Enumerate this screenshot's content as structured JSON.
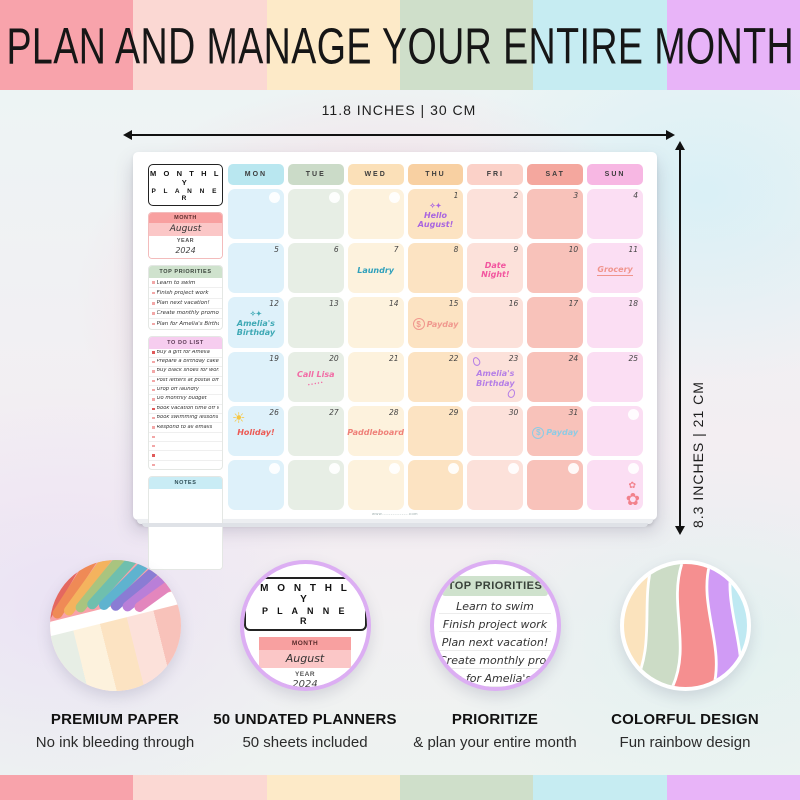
{
  "banner": {
    "title": "PLAN AND MANAGE YOUR ENTIRE MONTH",
    "colors": [
      "#f8a3ab",
      "#fbd8d3",
      "#fdeac8",
      "#cfdfca",
      "#c6ecf2",
      "#e8b4f8"
    ]
  },
  "dimensions": {
    "width_label": "11.8 INCHES | 30 CM",
    "height_label": "8.3 INCHES | 21 CM"
  },
  "planner": {
    "brand": {
      "line1": "M O N T H L Y",
      "line2": "P L A N N E R"
    },
    "month": {
      "label": "MONTH",
      "value": "August"
    },
    "year": {
      "label": "YEAR",
      "value": "2024"
    },
    "top_priorities": {
      "title": "TOP PRIORITIES",
      "items": [
        "Learn to swim",
        "Finish project work",
        "Plan next vacation!",
        "Create monthly promo",
        "Plan for Amelia's Birthday"
      ]
    },
    "todo": {
      "title": "TO DO LIST",
      "items": [
        "Buy a gift for Amelia",
        "Prepare a birthday cake",
        "Buy black shoes for work",
        "Post letters at postal office",
        "Drop off laundry",
        "Do monthly budget",
        "Book vacation time off work",
        "Book swimming lessons",
        "Respond to all emails"
      ],
      "empty_rows": 4
    },
    "notes": {
      "title": "NOTES"
    },
    "website_footer": "www.-------------.com",
    "calendar": {
      "columns": [
        {
          "label": "MON",
          "header": "#b9e7f0",
          "cell": "#def1fa"
        },
        {
          "label": "TUE",
          "header": "#cbdbc8",
          "cell": "#e7eee5"
        },
        {
          "label": "WED",
          "header": "#fbe0b8",
          "cell": "#fdf2dd"
        },
        {
          "label": "THU",
          "header": "#f8d0a2",
          "cell": "#fce3c2"
        },
        {
          "label": "FRI",
          "header": "#fbd1c8",
          "cell": "#fce1da"
        },
        {
          "label": "SAT",
          "header": "#f4a79e",
          "cell": "#f8c2ba"
        },
        {
          "label": "SUN",
          "header": "#f7b7e3",
          "cell": "#fbdef3"
        }
      ],
      "weeks": [
        [
          {
            "date": "",
            "circle": true
          },
          {
            "date": "",
            "circle": true
          },
          {
            "date": "",
            "circle": true
          },
          {
            "date": "1",
            "event": {
              "text": "Hello August!",
              "color": "#a965e0",
              "icon": "sparkles"
            }
          },
          {
            "date": "2"
          },
          {
            "date": "3"
          },
          {
            "date": "4"
          }
        ],
        [
          {
            "date": "5"
          },
          {
            "date": "6"
          },
          {
            "date": "7",
            "event": {
              "text": "Laundry",
              "color": "#2fa0bb"
            }
          },
          {
            "date": "8"
          },
          {
            "date": "9",
            "event": {
              "text": "Date Night!",
              "color": "#f2569f"
            }
          },
          {
            "date": "10"
          },
          {
            "date": "11",
            "event": {
              "text": "Grocery",
              "color": "#f0948c",
              "icon": "underline"
            }
          }
        ],
        [
          {
            "date": "12",
            "event": {
              "text": "Amelia's Birthday",
              "color": "#3fa9b5",
              "icon": "sparkles"
            }
          },
          {
            "date": "13"
          },
          {
            "date": "14"
          },
          {
            "date": "15",
            "event": {
              "text": "Payday",
              "color": "#f0988e",
              "icon": "payday"
            }
          },
          {
            "date": "16"
          },
          {
            "date": "17"
          },
          {
            "date": "18"
          }
        ],
        [
          {
            "date": "19"
          },
          {
            "date": "20",
            "event": {
              "text": "Call Lisa",
              "color": "#f26ba5",
              "icon": "dots"
            }
          },
          {
            "date": "21"
          },
          {
            "date": "22"
          },
          {
            "date": "23",
            "event": {
              "text": "Amelia's Birthday",
              "color": "#b57fe6",
              "icon": "balloons"
            }
          },
          {
            "date": "24"
          },
          {
            "date": "25"
          }
        ],
        [
          {
            "date": "26",
            "event": {
              "text": "Holiday!",
              "color": "#ec5a54",
              "icon": "sun"
            }
          },
          {
            "date": "27"
          },
          {
            "date": "28",
            "event": {
              "text": "Paddleboard",
              "color": "#ef8179"
            }
          },
          {
            "date": "29"
          },
          {
            "date": "30"
          },
          {
            "date": "31",
            "event": {
              "text": "Payday",
              "color": "#8ecbe4",
              "icon": "payday"
            }
          },
          {
            "date": "",
            "circle": true
          }
        ],
        [
          {
            "date": "",
            "circle": true
          },
          {
            "date": "",
            "circle": true
          },
          {
            "date": "",
            "circle": true
          },
          {
            "date": "",
            "circle": true
          },
          {
            "date": "",
            "circle": true
          },
          {
            "date": "",
            "circle": true
          },
          {
            "date": "",
            "circle": true,
            "icon": "flowers"
          }
        ]
      ]
    }
  },
  "features": [
    {
      "id": "premium-paper",
      "title": "PREMIUM PAPER",
      "subtitle": "No ink bleeding through"
    },
    {
      "id": "undated-planners",
      "title": "50 UNDATED PLANNERS",
      "subtitle": "50 sheets included"
    },
    {
      "id": "prioritize",
      "title": "PRIORITIZE",
      "subtitle": "& plan your entire month"
    },
    {
      "id": "colorful-design",
      "title": "COLORFUL DESIGN",
      "subtitle": "Fun rainbow design"
    }
  ],
  "photo_pencil_colors": [
    "#e4685f",
    "#ef8a56",
    "#f4b35e",
    "#a9c47f",
    "#6fbfae",
    "#5fb3cf",
    "#8a7cd4",
    "#b97fd8",
    "#e386bd"
  ],
  "wave_colors": [
    "#fbe3bd",
    "#ccdcc6",
    "#f58f90",
    "#d09bf5",
    "#bfe9f2"
  ]
}
